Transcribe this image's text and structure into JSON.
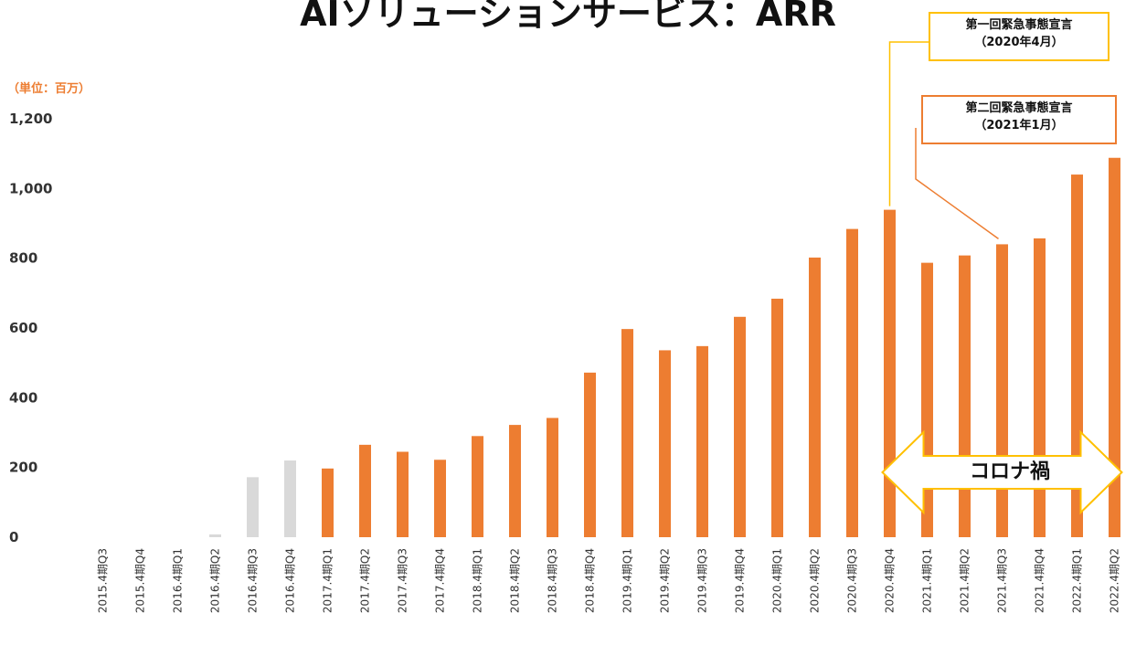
{
  "chart_data": {
    "type": "bar",
    "title": "AIソリューションサービス：ARR",
    "unit_label": "（単位：百万）",
    "categories": [
      "2015.4期Q3",
      "2015.4期Q4",
      "2016.4期Q1",
      "2016.4期Q2",
      "2016.4期Q3",
      "2016.4期Q4",
      "2017.4期Q1",
      "2017.4期Q2",
      "2017.4期Q3",
      "2017.4期Q4",
      "2018.4期Q1",
      "2018.4期Q2",
      "2018.4期Q3",
      "2018.4期Q4",
      "2019.4期Q1",
      "2019.4期Q2",
      "2019.4期Q3",
      "2019.4期Q4",
      "2020.4期Q1",
      "2020.4期Q2",
      "2020.4期Q3",
      "2020.4期Q4",
      "2021.4期Q1",
      "2021.4期Q2",
      "2021.4期Q3",
      "2021.4期Q4",
      "2022.4期Q1",
      "2022.4期Q2"
    ],
    "values": [
      0,
      0,
      0,
      8,
      172,
      220,
      197,
      265,
      245,
      222,
      290,
      322,
      342,
      472,
      597,
      536,
      548,
      632,
      684,
      802,
      884,
      939,
      787,
      808,
      840,
      857,
      1040,
      1088
    ],
    "bar_colors": [
      "#d9d9d9",
      "#d9d9d9",
      "#d9d9d9",
      "#d9d9d9",
      "#d9d9d9",
      "#d9d9d9",
      "#ed7d31",
      "#ed7d31",
      "#ed7d31",
      "#ed7d31",
      "#ed7d31",
      "#ed7d31",
      "#ed7d31",
      "#ed7d31",
      "#ed7d31",
      "#ed7d31",
      "#ed7d31",
      "#ed7d31",
      "#ed7d31",
      "#ed7d31",
      "#ed7d31",
      "#ed7d31",
      "#ed7d31",
      "#ed7d31",
      "#ed7d31",
      "#ed7d31",
      "#ed7d31",
      "#ed7d31"
    ],
    "ylim": [
      0,
      1200
    ],
    "yticks": [
      0,
      200,
      400,
      600,
      800,
      1000,
      1200
    ],
    "ytick_labels": [
      "0",
      "200",
      "400",
      "600",
      "800",
      "1,000",
      "1,200"
    ],
    "grid": false,
    "annotations": [
      {
        "id": "emergency-1",
        "lines": [
          "第一回緊急事態宣言",
          "（2020年4月）"
        ],
        "target_category": "2020.4期Q4",
        "color": "#ffc000"
      },
      {
        "id": "emergency-2",
        "lines": [
          "第二回緊急事態宣言",
          "（2021年1月）"
        ],
        "target_category": "2021.4期Q3",
        "color": "#ed7d31"
      },
      {
        "id": "corona",
        "text": "コロナ禍",
        "span": [
          "2020.4期Q4",
          "2022.4期Q2"
        ],
        "color": "#ffc000"
      }
    ]
  }
}
